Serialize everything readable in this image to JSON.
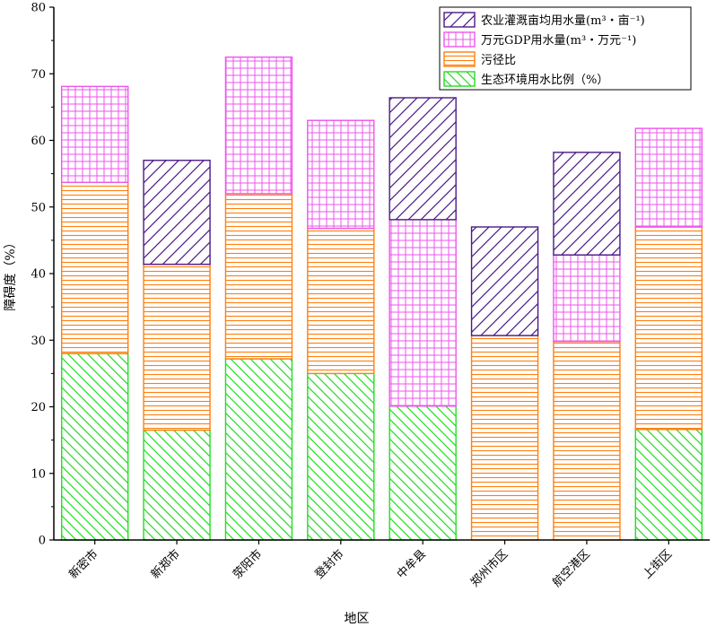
{
  "chart_data": {
    "type": "bar",
    "stacked": true,
    "xlabel": "地区",
    "ylabel": "障碍度（%）",
    "ylim": [
      0,
      80
    ],
    "yticks": [
      0,
      10,
      20,
      30,
      40,
      50,
      60,
      70,
      80
    ],
    "grid": false,
    "legend_position": "top-right",
    "categories": [
      "新密市",
      "新郑市",
      "荥阳市",
      "登封市",
      "中牟县",
      "郑州市区",
      "航空港区",
      "上街区"
    ],
    "series": [
      {
        "name": "生态环境用水比例（%）",
        "color": "#22dd22",
        "pattern": "backslash",
        "values": [
          28,
          16.5,
          27.2,
          25,
          20.1,
          0,
          0,
          16.6
        ]
      },
      {
        "name": "污径比",
        "color": "#ff7f0e",
        "pattern": "horizontal",
        "values": [
          25.7,
          24.9,
          24.8,
          21.8,
          0,
          30.7,
          29.8,
          30.4
        ]
      },
      {
        "name": "万元GDP用水量(m³・万元⁻¹)",
        "color": "#ee55ee",
        "pattern": "grid",
        "values": [
          14.4,
          0,
          20.5,
          16.2,
          28,
          0,
          13,
          14.8
        ]
      },
      {
        "name": "农业灌溉亩均用水量(m³・亩⁻¹)",
        "color": "#4b1a86",
        "pattern": "slash",
        "values": [
          0,
          15.6,
          0,
          0,
          18.3,
          16.3,
          15.4,
          0
        ]
      }
    ],
    "legend_order": [
      3,
      2,
      1,
      0
    ]
  }
}
